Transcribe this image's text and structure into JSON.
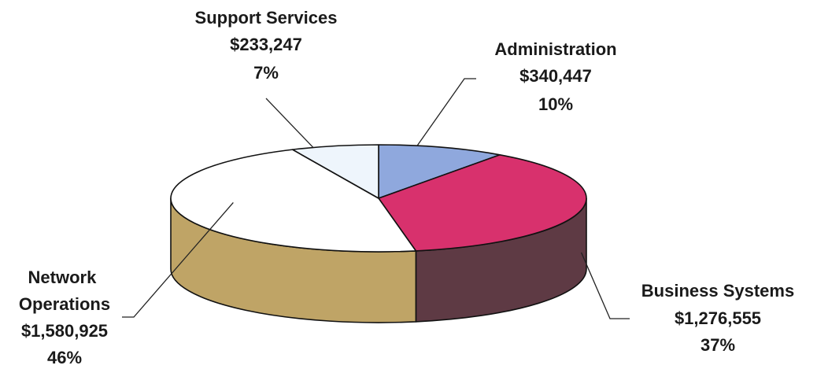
{
  "chart_data": {
    "type": "pie",
    "title": "",
    "slices": [
      {
        "category": "Administration",
        "value": 340447,
        "value_label": "$340,447",
        "percent_label": "10%",
        "color": "#8fa8dd"
      },
      {
        "category": "Business Systems",
        "value": 1276555,
        "value_label": "$1,276,555",
        "percent_label": "37%",
        "color": "#d8316d"
      },
      {
        "category": "Network Operations",
        "value": 1580925,
        "value_label": "$1,580,925",
        "percent_label": "46%",
        "color": "#ffffff"
      },
      {
        "category": "Support Services",
        "value": 233247,
        "value_label": "$233,247",
        "percent_label": "7%",
        "color": "#eef5fc"
      }
    ],
    "side_colors": {
      "Business Systems": "#5e3a44",
      "Network Operations": "#bfa466"
    },
    "style": "3d",
    "legend": "none"
  }
}
